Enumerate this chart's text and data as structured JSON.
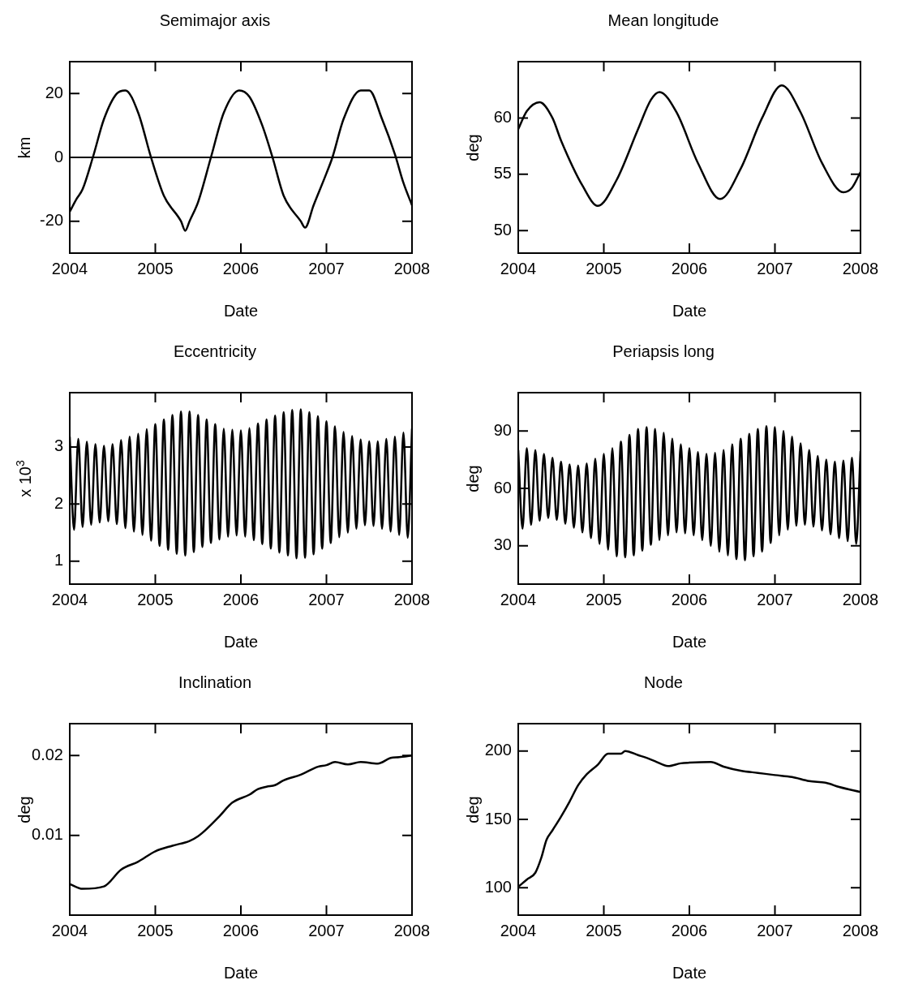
{
  "chart_data": [
    {
      "type": "line",
      "title": "Semimajor axis",
      "xlabel": "Date",
      "ylabel": "km",
      "xlim": [
        2004,
        2008
      ],
      "xticks": [
        2004,
        2005,
        2006,
        2007,
        2008
      ],
      "ylim": [
        -30,
        30
      ],
      "yticks": [
        -20,
        0,
        20
      ],
      "grid": false,
      "color": "#000000",
      "x": [
        2004,
        2004.08,
        2004.15,
        2004.27,
        2004.4,
        2004.55,
        2004.65,
        2004.8,
        2004.95,
        2005.1,
        2005.3,
        2005.35,
        2005.4,
        2005.5,
        2005.65,
        2005.8,
        2005.98,
        2006.1,
        2006.25,
        2006.37,
        2006.5,
        2006.7,
        2006.75,
        2006.85,
        2007,
        2007.07,
        2007.2,
        2007.4,
        2007.5,
        2007.65,
        2007.8,
        2007.9,
        2008
      ],
      "values": [
        -17,
        -13,
        -10,
        0,
        12,
        20,
        21,
        14,
        0,
        -12,
        -20,
        -23,
        -20,
        -14,
        0,
        14,
        21,
        19,
        10,
        0,
        -12,
        -20,
        -22,
        -15,
        -5,
        0,
        12,
        21,
        21,
        12,
        1,
        -8,
        -15
      ],
      "ref_lines": [
        {
          "axis": "y",
          "value": 0,
          "color": "#000000"
        }
      ]
    },
    {
      "type": "line",
      "title": "Mean longitude",
      "xlabel": "Date",
      "ylabel": "deg",
      "xlim": [
        2004,
        2008
      ],
      "xticks": [
        2004,
        2005,
        2006,
        2007,
        2008
      ],
      "ylim": [
        48,
        65
      ],
      "yticks": [
        50,
        55,
        60
      ],
      "grid": false,
      "color": "#000000",
      "x": [
        2004,
        2004.1,
        2004.25,
        2004.4,
        2004.5,
        2004.75,
        2004.93,
        2005.15,
        2005.4,
        2005.55,
        2005.65,
        2005.85,
        2006.1,
        2006.36,
        2006.6,
        2006.85,
        2007.08,
        2007.3,
        2007.55,
        2007.8,
        2007.9,
        2008
      ],
      "values": [
        59,
        60.6,
        61.4,
        60,
        58,
        54,
        52.2,
        54.5,
        59,
        61.6,
        62.3,
        60.5,
        56,
        52.8,
        55.5,
        60,
        62.9,
        60.5,
        56,
        53.4,
        53.8,
        55.2
      ]
    },
    {
      "type": "line",
      "title": "Eccentricity",
      "xlabel": "Date",
      "ylabel": "x 10$^{3}$",
      "xlim": [
        2004,
        2008
      ],
      "xticks": [
        2004,
        2005,
        2006,
        2007,
        2008
      ],
      "ylim": [
        0.6,
        3.95
      ],
      "yticks": [
        1,
        2,
        3
      ],
      "grid": false,
      "color": "#000000",
      "x": [
        2004,
        2004.05,
        2004.1,
        2004.15,
        2004.2,
        2004.25,
        2004.3,
        2004.35,
        2004.4,
        2004.45,
        2004.5,
        2004.55,
        2004.6,
        2004.65,
        2004.7,
        2004.75,
        2004.8,
        2004.85,
        2004.9,
        2004.95,
        2005,
        2005.05,
        2005.1,
        2005.15,
        2005.2,
        2005.25,
        2005.3,
        2005.35,
        2005.4,
        2005.45,
        2005.5,
        2005.55,
        2005.6,
        2005.65,
        2005.7,
        2005.75,
        2005.8,
        2005.85,
        2005.9,
        2005.95,
        2006,
        2006.05,
        2006.1,
        2006.15,
        2006.2,
        2006.25,
        2006.3,
        2006.35,
        2006.4,
        2006.45,
        2006.5,
        2006.55,
        2006.6,
        2006.65,
        2006.7,
        2006.75,
        2006.8,
        2006.85,
        2006.9,
        2006.95,
        2007,
        2007.05,
        2007.1,
        2007.15,
        2007.2,
        2007.25,
        2007.3,
        2007.35,
        2007.4,
        2007.45,
        2007.5,
        2007.55,
        2007.6,
        2007.65,
        2007.7,
        2007.75,
        2007.8,
        2007.85,
        2007.9,
        2007.95,
        2008
      ],
      "values": [
        3.18,
        1.55,
        3.14,
        1.6,
        3.09,
        1.64,
        3.05,
        1.68,
        3.02,
        1.7,
        3.05,
        1.65,
        3.12,
        1.58,
        3.18,
        1.52,
        3.23,
        1.46,
        3.31,
        1.36,
        3.4,
        1.27,
        3.48,
        1.2,
        3.56,
        1.13,
        3.62,
        1.1,
        3.62,
        1.16,
        3.56,
        1.25,
        3.48,
        1.32,
        3.4,
        1.38,
        3.32,
        1.43,
        3.3,
        1.45,
        3.29,
        1.43,
        3.33,
        1.37,
        3.41,
        1.3,
        3.48,
        1.22,
        3.55,
        1.15,
        3.61,
        1.1,
        3.65,
        1.05,
        3.66,
        1.06,
        3.61,
        1.12,
        3.54,
        1.22,
        3.45,
        1.32,
        3.36,
        1.42,
        3.26,
        1.5,
        3.19,
        1.57,
        3.13,
        1.63,
        3.1,
        1.62,
        3.1,
        1.57,
        3.14,
        1.52,
        3.18,
        1.46,
        3.25,
        1.41,
        3.32
      ]
    },
    {
      "type": "line",
      "title": "Periapsis long",
      "xlabel": "Date",
      "ylabel": "deg",
      "xlim": [
        2004,
        2008
      ],
      "xticks": [
        2004,
        2005,
        2006,
        2007,
        2008
      ],
      "ylim": [
        10,
        110
      ],
      "yticks": [
        30,
        60,
        90
      ],
      "grid": false,
      "color": "#000000",
      "x": [
        2004,
        2004.05,
        2004.1,
        2004.15,
        2004.2,
        2004.25,
        2004.3,
        2004.35,
        2004.4,
        2004.45,
        2004.5,
        2004.55,
        2004.6,
        2004.65,
        2004.7,
        2004.75,
        2004.8,
        2004.85,
        2004.9,
        2004.95,
        2005,
        2005.05,
        2005.1,
        2005.15,
        2005.2,
        2005.25,
        2005.3,
        2005.35,
        2005.4,
        2005.45,
        2005.5,
        2005.55,
        2005.6,
        2005.65,
        2005.7,
        2005.75,
        2005.8,
        2005.85,
        2005.9,
        2005.95,
        2006,
        2006.05,
        2006.1,
        2006.15,
        2006.2,
        2006.25,
        2006.3,
        2006.35,
        2006.4,
        2006.45,
        2006.5,
        2006.55,
        2006.6,
        2006.65,
        2006.7,
        2006.75,
        2006.8,
        2006.85,
        2006.9,
        2006.95,
        2007,
        2007.05,
        2007.1,
        2007.15,
        2007.2,
        2007.25,
        2007.3,
        2007.35,
        2007.4,
        2007.45,
        2007.5,
        2007.55,
        2007.6,
        2007.65,
        2007.7,
        2007.75,
        2007.8,
        2007.85,
        2007.9,
        2007.95,
        2008
      ],
      "values": [
        80,
        39,
        81,
        41,
        80,
        43,
        78,
        44.5,
        76,
        43.5,
        74,
        41.5,
        72.5,
        39.5,
        72,
        37,
        73,
        34,
        75.5,
        31,
        78,
        28,
        81,
        24.5,
        84.5,
        24,
        88,
        25,
        91,
        27.5,
        92,
        30.5,
        91,
        33,
        89,
        35.5,
        86,
        37,
        83,
        36.5,
        81,
        35.5,
        79,
        33,
        78,
        30,
        78.5,
        27,
        80,
        25,
        83,
        23,
        86,
        22.5,
        88.5,
        24.5,
        91,
        27,
        92.5,
        31.5,
        92,
        35.5,
        90,
        38.5,
        87,
        40.5,
        83.5,
        41,
        80,
        40,
        77,
        38,
        75,
        36,
        74,
        34,
        74.5,
        32.5,
        76,
        31,
        79.5
      ]
    },
    {
      "type": "line",
      "title": "Inclination",
      "xlabel": "Date",
      "ylabel": "deg",
      "xlim": [
        2004,
        2008
      ],
      "xticks": [
        2004,
        2005,
        2006,
        2007,
        2008
      ],
      "ylim": [
        0,
        0.024
      ],
      "yticks": [
        0.01,
        0.02
      ],
      "grid": false,
      "color": "#000000",
      "x": [
        2004,
        2004.15,
        2004.4,
        2004.6,
        2004.8,
        2005,
        2005.2,
        2005.4,
        2005.5,
        2005.6,
        2005.75,
        2005.9,
        2006.1,
        2006.2,
        2006.3,
        2006.4,
        2006.5,
        2006.7,
        2006.9,
        2007,
        2007.1,
        2007.25,
        2007.4,
        2007.6,
        2007.75,
        2007.85,
        2008
      ],
      "values": [
        0.0039,
        0.0033,
        0.0036,
        0.0057,
        0.0067,
        0.008,
        0.0087,
        0.0093,
        0.0099,
        0.0108,
        0.0124,
        0.0141,
        0.0151,
        0.0158,
        0.0161,
        0.0163,
        0.0169,
        0.0176,
        0.0186,
        0.0188,
        0.0192,
        0.0189,
        0.0192,
        0.019,
        0.0197,
        0.0198,
        0.02
      ]
    },
    {
      "type": "line",
      "title": "Node",
      "xlabel": "Date",
      "ylabel": "deg",
      "xlim": [
        2004,
        2008
      ],
      "xticks": [
        2004,
        2005,
        2006,
        2007,
        2008
      ],
      "ylim": [
        80,
        220
      ],
      "yticks": [
        100,
        150,
        200
      ],
      "grid": false,
      "color": "#000000",
      "x": [
        2004,
        2004.1,
        2004.2,
        2004.27,
        2004.33,
        2004.4,
        2004.5,
        2004.6,
        2004.7,
        2004.8,
        2004.93,
        2005.05,
        2005.2,
        2005.25,
        2005.4,
        2005.5,
        2005.6,
        2005.75,
        2005.9,
        2006,
        2006.25,
        2006.4,
        2006.6,
        2006.8,
        2007,
        2007.2,
        2007.4,
        2007.6,
        2007.75,
        2008
      ],
      "values": [
        100.7,
        106,
        111,
        122,
        135,
        142,
        152,
        163,
        175,
        183,
        190,
        198,
        198,
        200,
        197,
        195,
        192.5,
        189,
        191,
        191.5,
        192,
        188.6,
        185.6,
        184,
        182.4,
        181,
        178,
        176.7,
        173.7,
        170
      ]
    }
  ]
}
